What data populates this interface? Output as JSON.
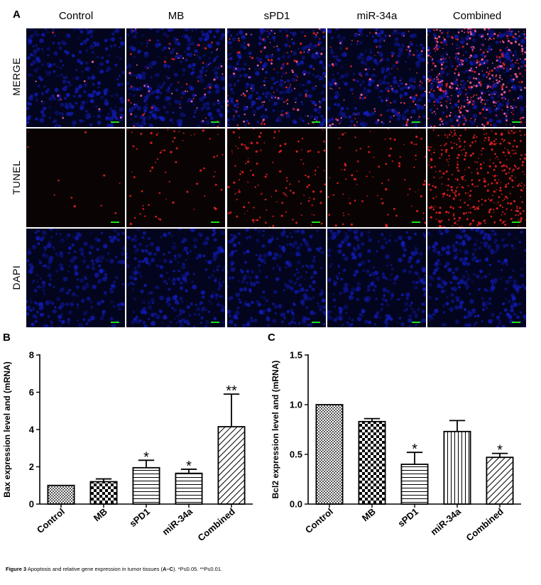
{
  "panel_a": {
    "letter": "A",
    "columns": [
      "Control",
      "MB",
      "sPD1",
      "miR-34a",
      "Combined"
    ],
    "rows": [
      "MERGE",
      "TUNEL",
      "DAPI"
    ],
    "colors": {
      "dapi": "#0a1eaa",
      "tunel": "#e02020",
      "scale_bar": "#19e019",
      "background": "#050508"
    },
    "tunel_density": [
      0.02,
      0.15,
      0.3,
      0.22,
      1.0
    ]
  },
  "panel_b": {
    "letter": "B"
  },
  "panel_c": {
    "letter": "C"
  },
  "chart_data": [
    {
      "type": "bar",
      "categories": [
        "Control",
        "MB",
        "sPD1",
        "miR-34a",
        "Combined"
      ],
      "values": [
        1.0,
        1.2,
        1.95,
        1.65,
        4.15
      ],
      "errors": [
        0,
        0.15,
        0.4,
        0.22,
        1.75
      ],
      "significance": [
        "",
        "",
        "*",
        "*",
        "**"
      ],
      "patterns": [
        "dense-check",
        "checker",
        "horizontal",
        "horizontal",
        "diagonal"
      ],
      "ylabel": "Bax expression level and (mRNA)",
      "xlabel": "",
      "ylim": [
        0,
        8
      ],
      "yticks": [
        "0",
        "2",
        "4",
        "6",
        "8"
      ]
    },
    {
      "type": "bar",
      "categories": [
        "Control",
        "MB",
        "sPD1",
        "miR-34a",
        "Combined"
      ],
      "values": [
        1.0,
        0.83,
        0.4,
        0.73,
        0.47
      ],
      "errors": [
        0,
        0.03,
        0.12,
        0.11,
        0.04
      ],
      "significance": [
        "",
        "",
        "*",
        "",
        "*"
      ],
      "patterns": [
        "dense-check",
        "checker",
        "horizontal",
        "vertical",
        "diagonal"
      ],
      "ylabel": "Bcl2 expression level and (mRNA)",
      "xlabel": "",
      "ylim": [
        0,
        1.5
      ],
      "yticks": [
        "0.0",
        "0.5",
        "1.0",
        "1.5"
      ]
    }
  ],
  "caption": {
    "label": "Figure 3",
    "text": " Apoptosis and relative gene expression in tumor tissues (",
    "refs": "A–C",
    "tail": "). *P≤0.05. **P≤0.01."
  }
}
